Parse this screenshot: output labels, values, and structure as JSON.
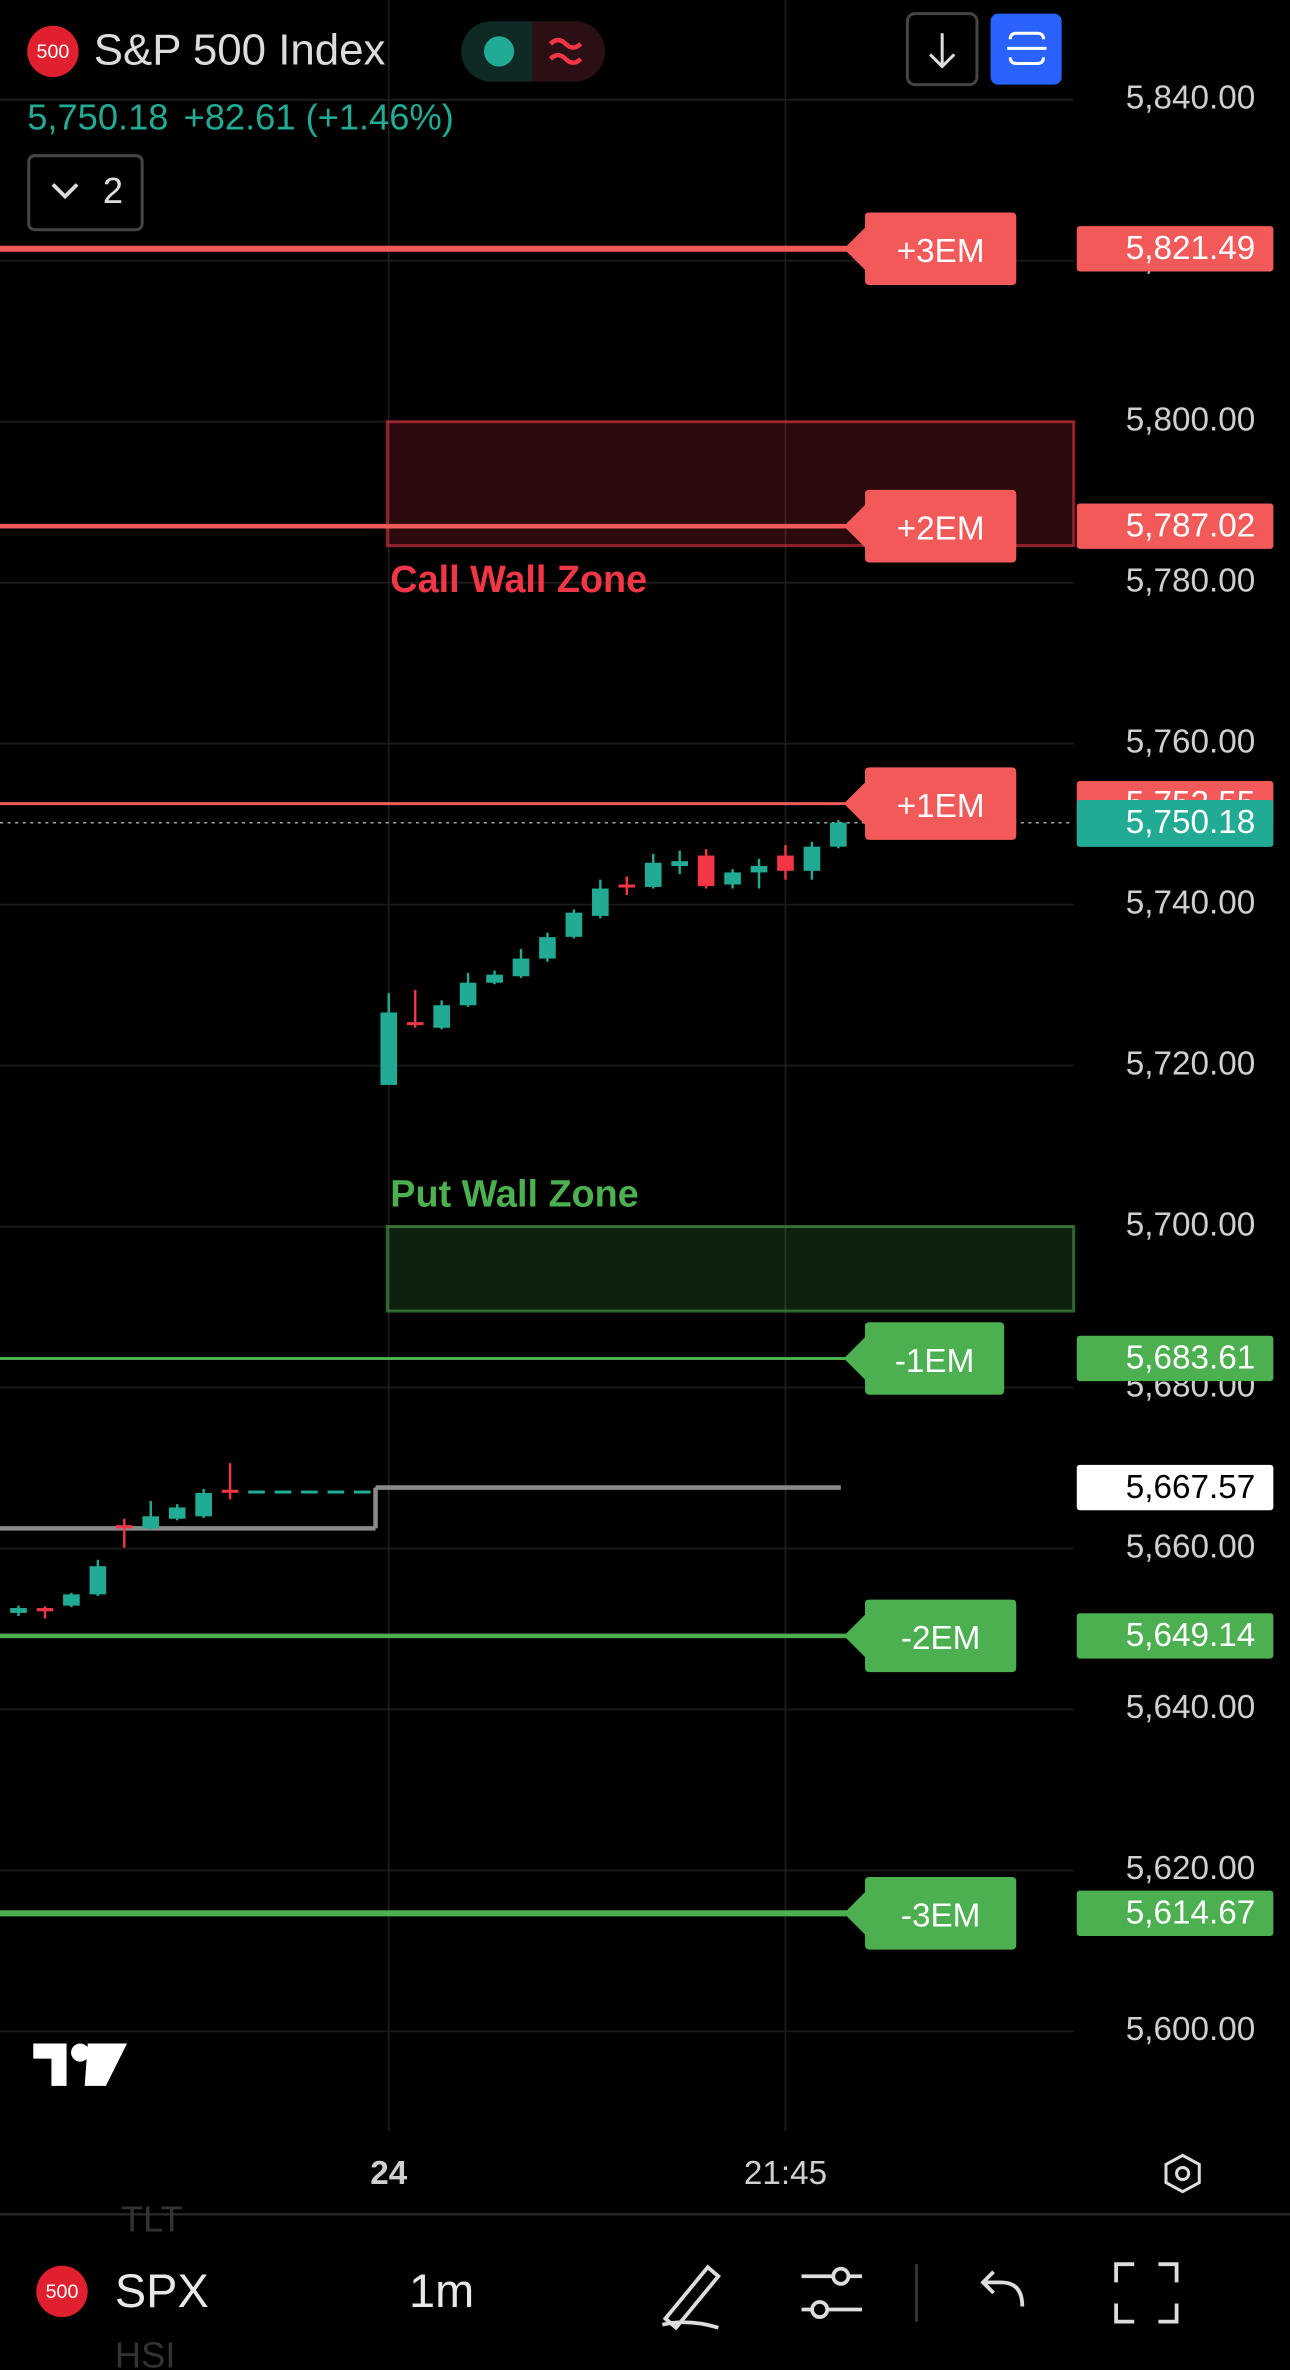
{
  "header": {
    "badge": "500",
    "symbol_name": "S&P 500 Index",
    "last": "5,750.18",
    "change": "+82.61 (+1.46%)",
    "indicators": "2"
  },
  "chart_data": {
    "type": "candlestick",
    "xlim": [
      -14.7,
      25.9
    ],
    "xticks": [
      {
        "value": 0,
        "label": "24"
      },
      {
        "value": 15,
        "label": "21:45"
      }
    ],
    "ylim": [
      5587.6,
      5852.4
    ],
    "yticks": [
      {
        "value": 5600,
        "label": "5,600.00"
      },
      {
        "value": 5620,
        "label": "5,620.00"
      },
      {
        "value": 5640,
        "label": "5,640.00"
      },
      {
        "value": 5660,
        "label": "5,660.00"
      },
      {
        "value": 5680,
        "label": "5,680.00"
      },
      {
        "value": 5700,
        "label": "5,700.00"
      },
      {
        "value": 5720,
        "label": "5,720.00"
      },
      {
        "value": 5740,
        "label": "5,740.00"
      },
      {
        "value": 5760,
        "label": "5,760.00"
      },
      {
        "value": 5780,
        "label": "5,780.00"
      },
      {
        "value": 5800,
        "label": "5,800.00"
      },
      {
        "value": 5820,
        "label": "5,820.00"
      },
      {
        "value": 5840,
        "label": "5,840.00"
      }
    ],
    "grid": true,
    "up_color": "#22ab94",
    "down_color": "#f23645",
    "candles": {
      "x": [
        -14,
        -13,
        -12,
        -11,
        -10,
        -9,
        -8,
        -7,
        -6,
        -5,
        -4,
        -3,
        -2,
        -1,
        0,
        1,
        2,
        3,
        4,
        5,
        6,
        7,
        8,
        9,
        10,
        11,
        12,
        13,
        14,
        15,
        16,
        17
      ],
      "open": [
        5652.0,
        5652.6,
        5652.9,
        5654.3,
        5662.9,
        5662.5,
        5663.7,
        5664.0,
        5667.3,
        5667.2,
        5667.2,
        5667.2,
        5667.2,
        5667.2,
        5717.6,
        5725.4,
        5724.7,
        5727.5,
        5730.3,
        5731.1,
        5733.3,
        5736.0,
        5738.6,
        5742.5,
        5742.2,
        5744.8,
        5746.1,
        5742.5,
        5744.0,
        5746.1,
        5744.2,
        5747.2
      ],
      "high": [
        5652.9,
        5652.8,
        5654.5,
        5658.6,
        5663.7,
        5665.9,
        5665.5,
        5667.4,
        5670.6,
        5667.2,
        5667.2,
        5667.2,
        5667.2,
        5667.2,
        5729.0,
        5729.4,
        5728.1,
        5731.5,
        5731.8,
        5734.5,
        5736.5,
        5739.4,
        5743.1,
        5743.5,
        5746.3,
        5746.7,
        5746.9,
        5744.4,
        5745.7,
        5747.4,
        5747.8,
        5750.5
      ],
      "low": [
        5651.6,
        5651.3,
        5652.7,
        5654.1,
        5660.1,
        5662.3,
        5663.5,
        5663.8,
        5666.1,
        5667.2,
        5667.2,
        5667.2,
        5667.2,
        5667.2,
        5717.6,
        5724.7,
        5724.5,
        5727.3,
        5730.1,
        5730.9,
        5732.9,
        5735.8,
        5738.3,
        5741.2,
        5742.0,
        5743.8,
        5742.0,
        5742.0,
        5742.0,
        5743.1,
        5743.1,
        5747.0
      ],
      "close": [
        5652.6,
        5652.2,
        5654.3,
        5657.8,
        5662.5,
        5664.0,
        5665.1,
        5666.9,
        5667.0,
        5667.2,
        5667.2,
        5667.2,
        5667.2,
        5667.2,
        5726.6,
        5725.1,
        5727.5,
        5730.3,
        5731.3,
        5733.3,
        5735.96,
        5739.0,
        5742.0,
        5742.2,
        5745.2,
        5745.4,
        5742.3,
        5744.0,
        5744.8,
        5744.2,
        5747.2,
        5750.18
      ]
    },
    "levels": [
      {
        "name": "+3EM",
        "value": 5821.49,
        "label": "5,821.49",
        "color": "#f25a5a",
        "width": 4
      },
      {
        "name": "+2EM",
        "value": 5787.02,
        "label": "5,787.02",
        "color": "#f25a5a",
        "width": 3
      },
      {
        "name": "+1EM",
        "value": 5752.55,
        "label": "5,752.55",
        "color": "#f25a5a",
        "width": 2
      },
      {
        "name": "-1EM",
        "value": 5683.61,
        "label": "5,683.61",
        "color": "#4caf50",
        "width": 2
      },
      {
        "name": "-2EM",
        "value": 5649.14,
        "label": "5,649.14",
        "color": "#4caf50",
        "width": 3
      },
      {
        "name": "-3EM",
        "value": 5614.67,
        "label": "5,614.67",
        "color": "#4caf50",
        "width": 4
      }
    ],
    "zones": [
      {
        "name": "Call Wall Zone",
        "range": [
          5784.6,
          5800
        ],
        "color": "#f23645"
      },
      {
        "name": "Put Wall Zone",
        "range": [
          5689.5,
          5700
        ],
        "color": "#4caf50"
      }
    ],
    "last_price": {
      "value": 5750.18,
      "label": "5,750.18"
    },
    "previous_close": {
      "values": [
        5662.5,
        5667.57
      ],
      "label": "5,667.57"
    }
  },
  "bottom_bar": {
    "badge": "500",
    "symbol": "SPX",
    "interval": "1m",
    "hidden_symbols": [
      "TLT",
      "HSI"
    ]
  }
}
